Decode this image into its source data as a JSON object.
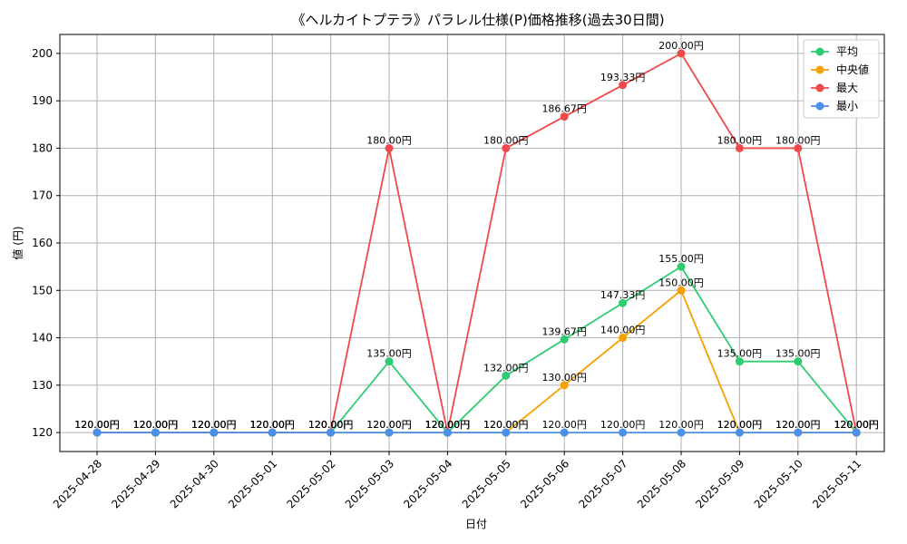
{
  "chart_data": {
    "type": "line",
    "title": "《ヘルカイトプテラ》パラレル仕様(P)価格推移(過去30日間)",
    "xlabel": "日付",
    "ylabel": "値 (円)",
    "ylim": [
      116,
      204
    ],
    "yticks": [
      120,
      130,
      140,
      150,
      160,
      170,
      180,
      190,
      200
    ],
    "grid": true,
    "legend_position": "top-right",
    "categories": [
      "2025-04-28",
      "2025-04-29",
      "2025-04-30",
      "2025-05-01",
      "2025-05-02",
      "2025-05-03",
      "2025-05-04",
      "2025-05-05",
      "2025-05-06",
      "2025-05-07",
      "2025-05-08",
      "2025-05-09",
      "2025-05-10",
      "2025-05-11"
    ],
    "series": [
      {
        "name": "平均",
        "color": "#2ecc71",
        "values": [
          120,
          120,
          120,
          120,
          120,
          135,
          120,
          132,
          139.67,
          147.33,
          155,
          135,
          135,
          120
        ],
        "labels": [
          "120.00円",
          "120.00円",
          "120.00円",
          "120.00円",
          "120.00円",
          "135.00円",
          "120.00円",
          "132.00円",
          "139.67円",
          "147.33円",
          "155.00円",
          "135.00円",
          "135.00円",
          "120.00円"
        ]
      },
      {
        "name": "中央値",
        "color": "#f5a000",
        "values": [
          120,
          120,
          120,
          120,
          120,
          120,
          120,
          120,
          130,
          140,
          150,
          120,
          120,
          120
        ],
        "labels": [
          "120.00円",
          "120.00円",
          "120.00円",
          "120.00円",
          "120.00円",
          "120.00円",
          "120.00円",
          "120.00円",
          "130.00円",
          "140.00円",
          "150.00円",
          "120.00円",
          "120.00円",
          "120.00円"
        ]
      },
      {
        "name": "最大",
        "color": "#f0494a",
        "values": [
          120,
          120,
          120,
          120,
          120,
          180,
          120,
          180,
          186.67,
          193.33,
          200,
          180,
          180,
          120
        ],
        "labels": [
          "120.00円",
          "120.00円",
          "120.00円",
          "120.00円",
          "120.00円",
          "180.00円",
          "120.00円",
          "180.00円",
          "186.67円",
          "193.33円",
          "200.00円",
          "180.00円",
          "180.00円",
          "120.00円"
        ]
      },
      {
        "name": "最小",
        "color": "#4a90e8",
        "values": [
          120,
          120,
          120,
          120,
          120,
          120,
          120,
          120,
          120,
          120,
          120,
          120,
          120,
          120
        ],
        "labels": [
          "120.00円",
          "120.00円",
          "120.00円",
          "120.00円",
          "120.00円",
          "120.00円",
          "120.00円",
          "120.00円",
          "120.00円",
          "120.00円",
          "120.00円",
          "120.00円",
          "120.00円",
          "120.00円"
        ]
      }
    ]
  }
}
